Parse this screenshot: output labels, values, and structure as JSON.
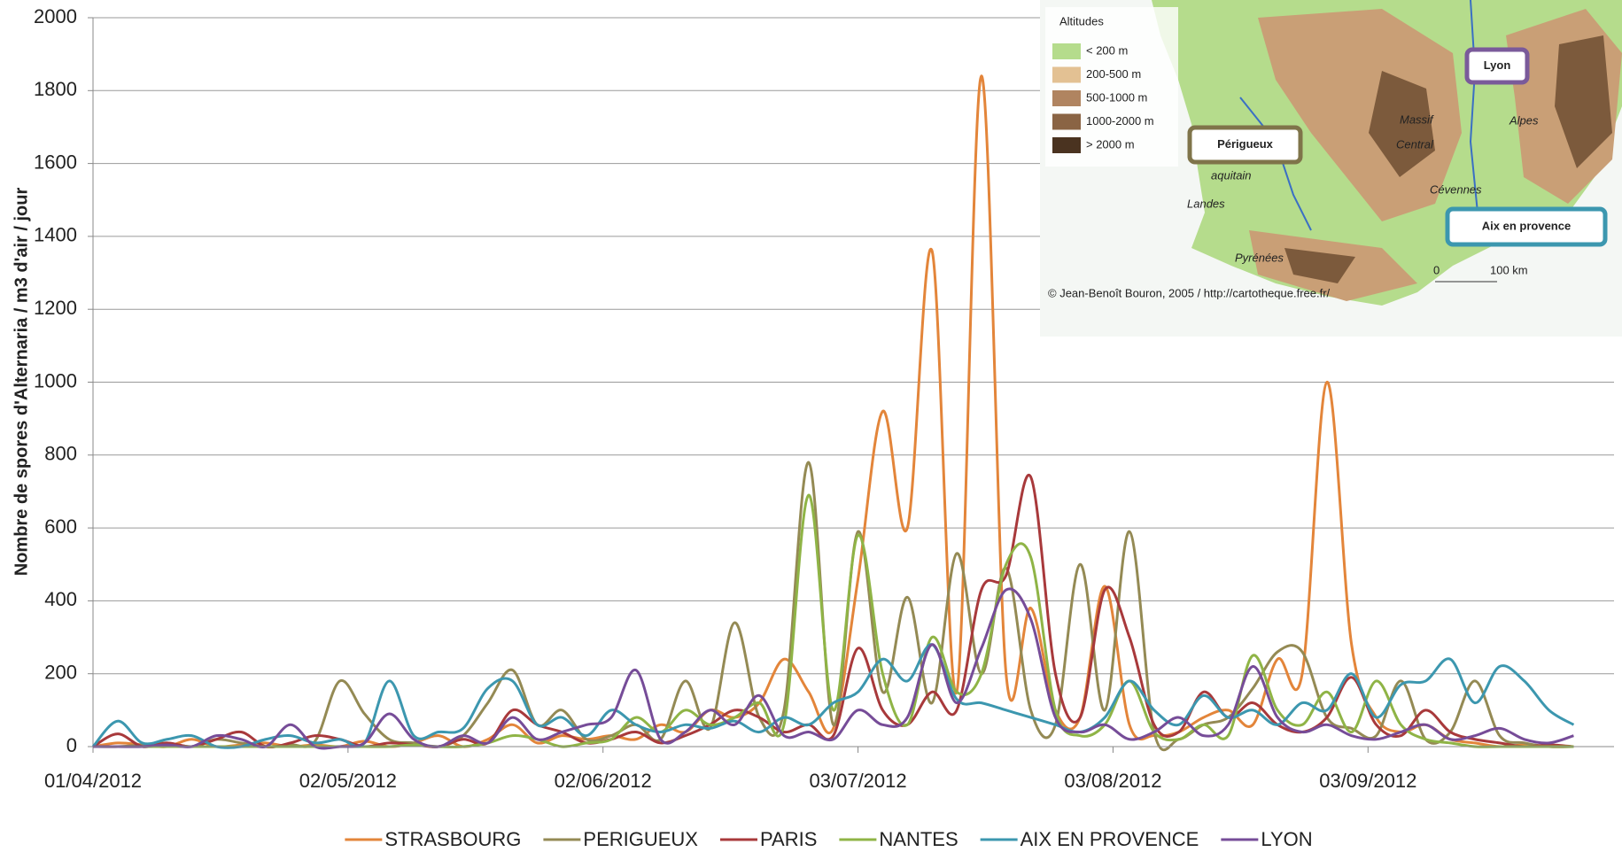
{
  "chart_data": {
    "type": "line",
    "y_label": "Nombre de spores d'Alternaria / m3 d'air / jour",
    "x": [
      "01/04/2012",
      "04/04/2012",
      "07/04/2012",
      "10/04/2012",
      "13/04/2012",
      "16/04/2012",
      "19/04/2012",
      "22/04/2012",
      "25/04/2012",
      "28/04/2012",
      "01/05/2012",
      "04/05/2012",
      "07/05/2012",
      "10/05/2012",
      "13/05/2012",
      "16/05/2012",
      "19/05/2012",
      "22/05/2012",
      "25/05/2012",
      "28/05/2012",
      "31/05/2012",
      "03/06/2012",
      "06/06/2012",
      "09/06/2012",
      "12/06/2012",
      "15/06/2012",
      "18/06/2012",
      "21/06/2012",
      "24/06/2012",
      "27/06/2012",
      "30/06/2012",
      "03/07/2012",
      "06/07/2012",
      "09/07/2012",
      "12/07/2012",
      "15/07/2012",
      "18/07/2012",
      "21/07/2012",
      "24/07/2012",
      "27/07/2012",
      "30/07/2012",
      "02/08/2012",
      "05/08/2012",
      "08/08/2012",
      "11/08/2012",
      "14/08/2012",
      "17/08/2012",
      "20/08/2012",
      "23/08/2012",
      "26/08/2012",
      "29/08/2012",
      "01/09/2012",
      "04/09/2012",
      "07/09/2012",
      "10/09/2012",
      "13/09/2012",
      "16/09/2012",
      "19/09/2012",
      "22/09/2012",
      "25/09/2012",
      "28/09/2012"
    ],
    "series": [
      {
        "name": "STRASBOURG",
        "color": "#e3853a",
        "values": [
          0,
          10,
          5,
          0,
          20,
          0,
          5,
          10,
          0,
          5,
          0,
          15,
          0,
          10,
          30,
          0,
          20,
          60,
          10,
          30,
          20,
          30,
          20,
          60,
          40,
          100,
          80,
          120,
          240,
          150,
          50,
          460,
          920,
          600,
          1360,
          150,
          1840,
          200,
          380,
          100,
          80,
          440,
          60,
          30,
          40,
          80,
          100,
          60,
          240,
          200,
          1000,
          280,
          80,
          40,
          60,
          20,
          10,
          0,
          5,
          0,
          0
        ]
      },
      {
        "name": "PERIGUEUX",
        "color": "#948a54",
        "values": [
          0,
          0,
          5,
          10,
          0,
          20,
          10,
          0,
          5,
          15,
          180,
          90,
          20,
          10,
          0,
          30,
          120,
          210,
          60,
          100,
          20,
          30,
          60,
          20,
          180,
          50,
          340,
          80,
          100,
          780,
          60,
          590,
          150,
          410,
          120,
          530,
          200,
          490,
          100,
          60,
          500,
          100,
          590,
          40,
          20,
          60,
          80,
          160,
          260,
          260,
          80,
          50,
          30,
          180,
          20,
          40,
          180,
          30,
          10,
          0,
          0
        ]
      },
      {
        "name": "PARIS",
        "color": "#a8393b",
        "values": [
          0,
          35,
          0,
          10,
          0,
          20,
          40,
          0,
          10,
          30,
          20,
          0,
          10,
          5,
          0,
          20,
          10,
          100,
          60,
          40,
          10,
          20,
          40,
          10,
          30,
          60,
          100,
          80,
          40,
          60,
          30,
          270,
          100,
          60,
          150,
          100,
          430,
          470,
          740,
          200,
          80,
          430,
          300,
          60,
          40,
          150,
          80,
          120,
          60,
          40,
          80,
          190,
          60,
          30,
          100,
          40,
          20,
          10,
          0,
          5,
          0
        ]
      },
      {
        "name": "NANTES",
        "color": "#8fb446",
        "values": [
          0,
          0,
          0,
          0,
          0,
          0,
          0,
          0,
          0,
          0,
          0,
          0,
          0,
          5,
          0,
          0,
          10,
          30,
          20,
          0,
          10,
          20,
          80,
          40,
          100,
          60,
          80,
          120,
          60,
          690,
          100,
          580,
          200,
          60,
          300,
          150,
          200,
          500,
          520,
          100,
          30,
          60,
          180,
          40,
          20,
          60,
          30,
          250,
          100,
          60,
          150,
          40,
          180,
          60,
          20,
          10,
          0,
          0,
          0,
          0,
          0
        ]
      },
      {
        "name": "AIX EN PROVENCE",
        "color": "#3c97af",
        "values": [
          0,
          70,
          10,
          20,
          30,
          0,
          0,
          20,
          30,
          10,
          20,
          10,
          180,
          30,
          40,
          50,
          160,
          180,
          60,
          80,
          30,
          100,
          60,
          40,
          60,
          50,
          70,
          40,
          80,
          60,
          120,
          150,
          240,
          180,
          280,
          130,
          120,
          100,
          80,
          60,
          40,
          80,
          180,
          100,
          60,
          140,
          80,
          100,
          60,
          120,
          100,
          200,
          80,
          170,
          180,
          240,
          120,
          220,
          180,
          100,
          60
        ]
      },
      {
        "name": "LYON",
        "color": "#764c98",
        "values": [
          0,
          0,
          0,
          5,
          0,
          30,
          20,
          0,
          60,
          0,
          0,
          10,
          90,
          20,
          0,
          30,
          10,
          80,
          20,
          40,
          60,
          80,
          210,
          20,
          40,
          100,
          60,
          140,
          30,
          40,
          20,
          100,
          60,
          80,
          280,
          120,
          270,
          430,
          350,
          80,
          40,
          60,
          20,
          40,
          80,
          30,
          60,
          220,
          80,
          40,
          60,
          30,
          20,
          40,
          60,
          20,
          30,
          50,
          20,
          10,
          30
        ]
      }
    ],
    "xlim": [
      "01/04/2012",
      "30/09/2012"
    ],
    "xticks": [
      "01/04/2012",
      "02/05/2012",
      "02/06/2012",
      "03/07/2012",
      "03/08/2012",
      "03/09/2012"
    ],
    "ylim": [
      0,
      2000
    ],
    "yticks": [
      0,
      200,
      400,
      600,
      800,
      1000,
      1200,
      1400,
      1600,
      1800,
      2000
    ],
    "grid": true,
    "legend": "bottom"
  },
  "map_inset": {
    "legend_title": "Altitudes",
    "legend": [
      {
        "label": "< 200 m",
        "color": "#b5dc8c"
      },
      {
        "label": "200-500 m",
        "color": "#e3c193"
      },
      {
        "label": "500-1000 m",
        "color": "#b08460"
      },
      {
        "label": "1000-2000 m",
        "color": "#8a6444"
      },
      {
        "label": "> 2000 m",
        "color": "#4a3320"
      }
    ],
    "cities": [
      "Lyon",
      "Périgueux",
      "Aix en provence"
    ],
    "places": {
      "massif": [
        "Massif",
        "Central"
      ],
      "alpes": "Alpes",
      "pyrenees": "Pyrénées",
      "landes": "Landes",
      "aquitain": "aquitain",
      "cevennes": "Cévennes"
    },
    "scale": [
      "0",
      "100 km"
    ],
    "credit": "© Jean-Benoît Bouron, 2005 / http://cartotheque.free.fr/"
  }
}
